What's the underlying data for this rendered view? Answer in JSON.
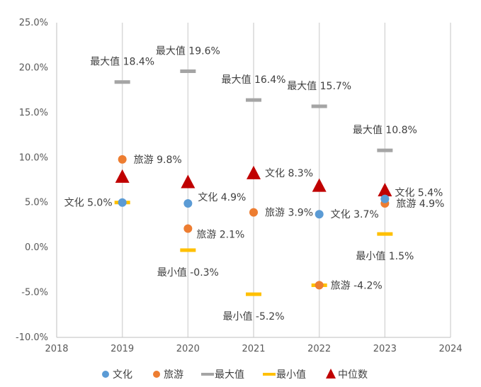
{
  "chart_data": {
    "type": "scatter",
    "x_range": [
      2018,
      2024
    ],
    "y_range": [
      -10.0,
      25.0
    ],
    "y_ticks": [
      "25.0%",
      "20.0%",
      "15.0%",
      "10.0%",
      "5.0%",
      "0.0%",
      "-5.0%",
      "-10.0%"
    ],
    "y_tick_values": [
      25,
      20,
      15,
      10,
      5,
      0,
      -5,
      -10
    ],
    "x_ticks": [
      "2018",
      "2019",
      "2020",
      "2021",
      "2022",
      "2023",
      "2024"
    ],
    "x_tick_values": [
      2018,
      2019,
      2020,
      2021,
      2022,
      2023,
      2024
    ],
    "grid": "vertical",
    "legend_position": "bottom",
    "colors": {
      "wenhua": "#5B9BD5",
      "lvyou": "#ED7D31",
      "max": "#A5A5A5",
      "min": "#FFC000",
      "median": "#C00000",
      "grid": "#D9D9D9"
    },
    "legend": [
      {
        "key": "wenhua",
        "label": "文化",
        "marker": "circle"
      },
      {
        "key": "lvyou",
        "label": "旅游",
        "marker": "circle"
      },
      {
        "key": "max",
        "label": "最大值",
        "marker": "dash"
      },
      {
        "key": "min",
        "label": "最小值",
        "marker": "dash"
      },
      {
        "key": "median",
        "label": "中位数",
        "marker": "triangle"
      }
    ],
    "series": [
      {
        "key": "wenhua",
        "name": "文化",
        "marker": "circle",
        "points": [
          {
            "x": 2019,
            "y": 5.0,
            "label": "文化 5.0%",
            "pos": "left"
          },
          {
            "x": 2020,
            "y": 4.9,
            "label": "文化 4.9%",
            "pos": "right-up"
          },
          {
            "x": 2022,
            "y": 3.7,
            "label": "文化 3.7%",
            "pos": "right"
          },
          {
            "x": 2023,
            "y": 5.4,
            "label": "文化 5.4%",
            "pos": "right-up"
          }
        ]
      },
      {
        "key": "lvyou",
        "name": "旅游",
        "marker": "circle",
        "points": [
          {
            "x": 2019,
            "y": 9.8,
            "label": "旅游 9.8%",
            "pos": "right"
          },
          {
            "x": 2020,
            "y": 2.1,
            "label": "旅游 2.1%",
            "pos": "right-down"
          },
          {
            "x": 2021,
            "y": 3.9,
            "label": "旅游 3.9%",
            "pos": "right"
          },
          {
            "x": 2022,
            "y": -4.2,
            "label": "旅游 -4.2%",
            "pos": "right"
          },
          {
            "x": 2023,
            "y": 4.9,
            "label": "旅游 4.9%",
            "pos": "right"
          }
        ]
      },
      {
        "key": "max",
        "name": "最大值",
        "marker": "dash",
        "points": [
          {
            "x": 2019,
            "y": 18.4,
            "label": "最大值 18.4%",
            "pos": "above"
          },
          {
            "x": 2020,
            "y": 19.6,
            "label": "最大值 19.6%",
            "pos": "above"
          },
          {
            "x": 2021,
            "y": 16.4,
            "label": "最大值 16.4%",
            "pos": "above"
          },
          {
            "x": 2022,
            "y": 15.7,
            "label": "最大值 15.7%",
            "pos": "above"
          },
          {
            "x": 2023,
            "y": 10.8,
            "label": "最大值 10.8%",
            "pos": "above"
          }
        ]
      },
      {
        "key": "min",
        "name": "最小值",
        "marker": "dash",
        "points": [
          {
            "x": 2019,
            "y": 5.0,
            "label": "",
            "pos": "none"
          },
          {
            "x": 2020,
            "y": -0.3,
            "label": "最小值 -0.3%",
            "pos": "below"
          },
          {
            "x": 2021,
            "y": -5.2,
            "label": "最小值 -5.2%",
            "pos": "below"
          },
          {
            "x": 2022,
            "y": -4.2,
            "label": "",
            "pos": "none"
          },
          {
            "x": 2023,
            "y": 1.5,
            "label": "最小值 1.5%",
            "pos": "below"
          }
        ]
      },
      {
        "key": "median",
        "name": "中位数",
        "marker": "triangle",
        "points": [
          {
            "x": 2019,
            "y": 7.9,
            "label": "",
            "pos": "none"
          },
          {
            "x": 2020,
            "y": 7.3,
            "label": "",
            "pos": "none"
          },
          {
            "x": 2021,
            "y": 8.3,
            "label": "文化 8.3%",
            "pos": "right"
          },
          {
            "x": 2022,
            "y": 6.9,
            "label": "",
            "pos": "none"
          },
          {
            "x": 2023,
            "y": 6.4,
            "label": "",
            "pos": "none"
          }
        ]
      }
    ]
  }
}
